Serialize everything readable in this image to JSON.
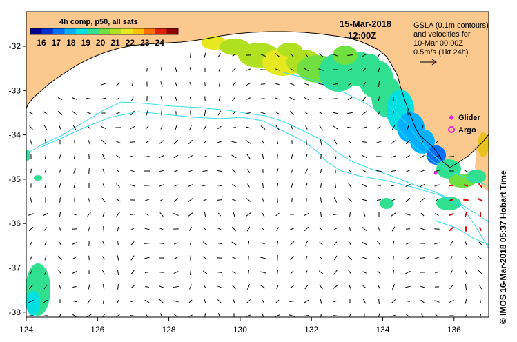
{
  "title": {
    "date": "15-Mar-2018",
    "time": "12:00Z"
  },
  "colorbar": {
    "title": "4h comp, p50, all sats",
    "ticks": [
      "16",
      "17",
      "18",
      "19",
      "20",
      "21",
      "22",
      "23",
      "24"
    ],
    "colors": [
      "#00008c",
      "#0030d0",
      "#0070ff",
      "#00b0ff",
      "#00e0e0",
      "#30e090",
      "#70e040",
      "#b0e020",
      "#e8e820",
      "#ffc000",
      "#ff7000",
      "#e02000",
      "#900000"
    ]
  },
  "legend": {
    "line1": "GSLA (0.1m contours)",
    "line2": "and velocities for",
    "line3": "10-Mar 00:00Z",
    "line4": "0.5m/s (1kt 24h)"
  },
  "markers": {
    "glider": "Glider",
    "argo": "Argo",
    "glider_color": "#e020e0",
    "argo_color": "#e020e0"
  },
  "axes": {
    "lon_ticks": [
      "124",
      "126",
      "128",
      "130",
      "132",
      "134",
      "136"
    ],
    "lat_ticks": [
      "-32",
      "-33",
      "-34",
      "-35",
      "-36",
      "-37",
      "-38"
    ]
  },
  "credit": "© IMOS 16-Mar-2018 05:37 Hobart Time",
  "colors": {
    "land": "#fbc98e",
    "contour": "#33ddee",
    "vector": "#000000",
    "strong_vector": "#dd0000"
  }
}
